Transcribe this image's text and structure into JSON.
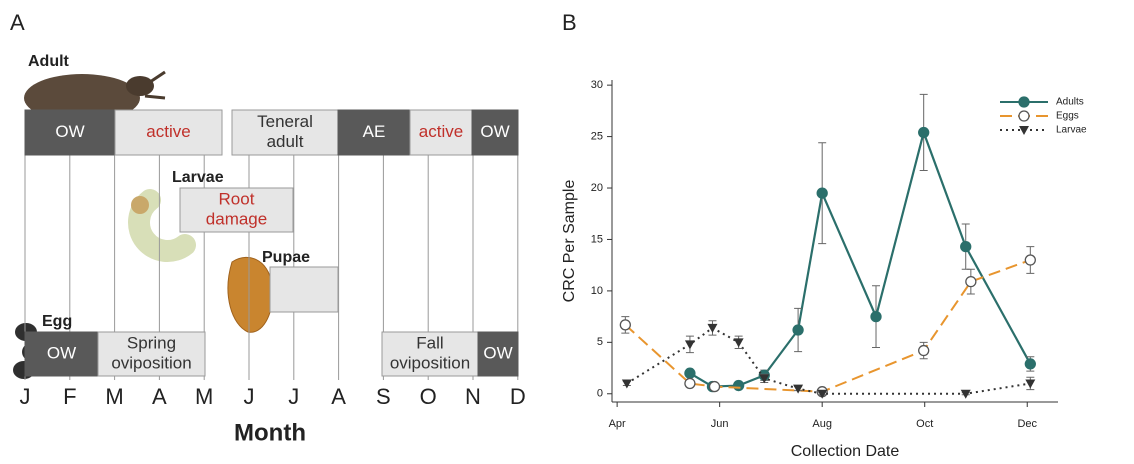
{
  "panel_a": {
    "panel_label": "A",
    "months": [
      "J",
      "F",
      "M",
      "A",
      "M",
      "J",
      "J",
      "A",
      "S",
      "O",
      "N",
      "D"
    ],
    "axis_title": "Month",
    "stages": [
      {
        "name": "Adult",
        "boxes": [
          {
            "lines": [
              "OW"
            ]
          },
          {
            "lines": [
              "active"
            ]
          },
          {
            "lines": [
              "Teneral",
              "adult"
            ]
          },
          {
            "lines": [
              "AE"
            ]
          },
          {
            "lines": [
              "active"
            ]
          },
          {
            "lines": [
              "OW"
            ]
          }
        ]
      },
      {
        "name": "Larvae",
        "boxes": [
          {
            "lines": [
              "Root",
              "damage"
            ]
          }
        ]
      },
      {
        "name": "Pupae"
      },
      {
        "name": "Egg",
        "boxes": [
          {
            "lines": [
              "OW"
            ]
          },
          {
            "lines": [
              "Spring",
              "oviposition"
            ]
          },
          {
            "lines": [
              "Fall",
              "oviposition"
            ]
          },
          {
            "lines": [
              "OW"
            ]
          }
        ]
      }
    ]
  },
  "chart_data": {
    "type": "line",
    "panel_label": "B",
    "x_label": "Collection Date",
    "y_label": "CRC Per Sample",
    "xlim": [
      3.9,
      12.6
    ],
    "xticks": [
      {
        "value": 4,
        "label": "Apr"
      },
      {
        "value": 6,
        "label": "Jun"
      },
      {
        "value": 8,
        "label": "Aug"
      },
      {
        "value": 10,
        "label": "Oct"
      },
      {
        "value": 12,
        "label": "Dec"
      }
    ],
    "ylim": [
      -0.8,
      30.5
    ],
    "yticks": [
      0,
      5,
      10,
      15,
      20,
      25,
      30
    ],
    "legend": "upper right",
    "series": [
      {
        "name": "Adults",
        "color": "#2b6f6b",
        "dash": "solid",
        "marker": "filled-circle",
        "x": [
          5.42,
          5.86,
          6.37,
          6.87,
          7.53,
          8.0,
          9.05,
          9.98,
          10.8,
          12.06
        ],
        "values": [
          2.0,
          0.7,
          0.8,
          1.8,
          6.2,
          19.5,
          7.5,
          25.4,
          14.3,
          2.9
        ],
        "errors": [
          0.3,
          0.2,
          0.2,
          0.5,
          2.1,
          4.9,
          3.0,
          3.7,
          2.2,
          0.7
        ]
      },
      {
        "name": "Eggs",
        "color": "#e8952e",
        "dash": "dashed",
        "marker": "open-circle",
        "x": [
          4.16,
          5.42,
          5.9,
          8.0,
          9.98,
          10.9,
          12.06
        ],
        "values": [
          6.7,
          1.0,
          0.7,
          0.2,
          4.2,
          10.9,
          13.0
        ],
        "errors": [
          0.8,
          0.2,
          0.2,
          0.1,
          0.8,
          1.2,
          1.3
        ]
      },
      {
        "name": "Larvae",
        "color": "#333333",
        "dash": "dotted",
        "marker": "triangle",
        "x": [
          4.19,
          5.42,
          5.86,
          6.37,
          6.87,
          7.53,
          8.0,
          10.8,
          12.06
        ],
        "values": [
          1.0,
          4.8,
          6.4,
          5.0,
          1.5,
          0.5,
          0.0,
          0.0,
          1.0
        ],
        "errors": [
          0.2,
          0.8,
          0.7,
          0.6,
          0.4,
          0.2,
          0.1,
          0.1,
          0.6
        ]
      }
    ]
  }
}
